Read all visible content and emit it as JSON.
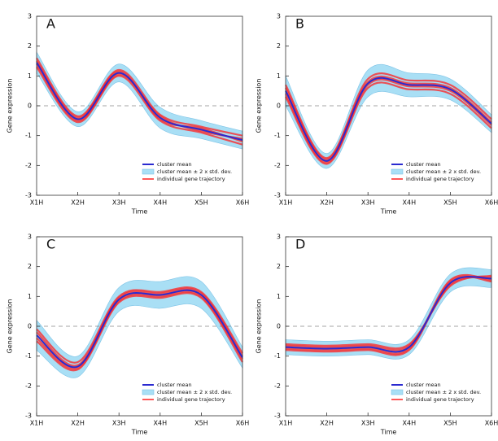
{
  "chart_data": [
    {
      "type": "band-line",
      "panel": "A",
      "ylabel": "Gene expression",
      "xlabel": "Time",
      "categories": [
        "X1H",
        "X2H",
        "X3H",
        "X4H",
        "X5H",
        "X6H"
      ],
      "ylim": [
        -3,
        3
      ],
      "yticks": [
        -3,
        -2,
        -1,
        0,
        1,
        2,
        3
      ],
      "hline": 0,
      "series": [
        {
          "name": "cluster mean",
          "color": "#2a2ad0",
          "values": [
            1.45,
            -0.45,
            1.1,
            -0.4,
            -0.8,
            -1.15
          ]
        },
        {
          "name": "cluster mean ± 2 x std. dev.",
          "color": "#a9dff5",
          "lower": [
            1.1,
            -0.7,
            0.8,
            -0.75,
            -1.1,
            -1.45
          ],
          "upper": [
            1.8,
            -0.2,
            1.4,
            -0.05,
            -0.5,
            -0.85
          ]
        },
        {
          "name": "individual gene trajectory",
          "color": "#ff2020",
          "trajectories": [
            [
              1.6,
              -0.35,
              1.2,
              -0.3,
              -0.7,
              -1.0
            ],
            [
              1.3,
              -0.55,
              1.0,
              -0.5,
              -0.9,
              -1.3
            ],
            [
              1.5,
              -0.4,
              1.15,
              -0.45,
              -0.75,
              -1.2
            ],
            [
              1.4,
              -0.5,
              1.05,
              -0.35,
              -0.85,
              -1.1
            ]
          ]
        }
      ]
    },
    {
      "type": "band-line",
      "panel": "B",
      "ylabel": "Gene expression",
      "xlabel": "Time",
      "categories": [
        "X1H",
        "X2H",
        "X3H",
        "X4H",
        "X5H",
        "X6H"
      ],
      "ylim": [
        -3,
        3
      ],
      "yticks": [
        -3,
        -2,
        -1,
        0,
        1,
        2,
        3
      ],
      "hline": 0,
      "series": [
        {
          "name": "cluster mean",
          "color": "#2a2ad0",
          "values": [
            0.5,
            -1.85,
            0.75,
            0.7,
            0.55,
            -0.6
          ]
        },
        {
          "name": "cluster mean ± 2 x std. dev.",
          "color": "#a9dff5",
          "lower": [
            0.0,
            -2.1,
            0.3,
            0.3,
            0.2,
            -0.9
          ],
          "upper": [
            1.0,
            -1.6,
            1.2,
            1.1,
            0.9,
            -0.3
          ]
        },
        {
          "name": "individual gene trajectory",
          "color": "#ff2020",
          "trajectories": [
            [
              0.7,
              -1.75,
              0.9,
              0.85,
              0.7,
              -0.45
            ],
            [
              0.3,
              -1.95,
              0.6,
              0.55,
              0.4,
              -0.75
            ],
            [
              0.6,
              -1.8,
              0.8,
              0.75,
              0.6,
              -0.55
            ],
            [
              0.4,
              -1.9,
              0.7,
              0.65,
              0.5,
              -0.65
            ]
          ]
        }
      ]
    },
    {
      "type": "band-line",
      "panel": "C",
      "ylabel": "Gene expression",
      "xlabel": "Time",
      "categories": [
        "X1H",
        "X2H",
        "X3H",
        "X4H",
        "X5H",
        "X6H"
      ],
      "ylim": [
        -3,
        3
      ],
      "yticks": [
        -3,
        -2,
        -1,
        0,
        1,
        2,
        3
      ],
      "hline": 0,
      "series": [
        {
          "name": "cluster mean",
          "color": "#2a2ad0",
          "values": [
            -0.3,
            -1.35,
            0.9,
            1.05,
            1.05,
            -1.05
          ]
        },
        {
          "name": "cluster mean ± 2 x std. dev.",
          "color": "#a9dff5",
          "lower": [
            -0.8,
            -1.7,
            0.5,
            0.6,
            0.6,
            -1.4
          ],
          "upper": [
            0.2,
            -1.0,
            1.3,
            1.5,
            1.5,
            -0.7
          ]
        },
        {
          "name": "individual gene trajectory",
          "color": "#ff2020",
          "trajectories": [
            [
              -0.1,
              -1.2,
              1.0,
              1.15,
              1.15,
              -0.9
            ],
            [
              -0.5,
              -1.45,
              0.8,
              0.95,
              0.95,
              -1.2
            ],
            [
              -0.2,
              -1.3,
              0.95,
              1.1,
              1.1,
              -1.0
            ],
            [
              -0.4,
              -1.4,
              0.85,
              1.0,
              1.0,
              -1.1
            ]
          ]
        }
      ]
    },
    {
      "type": "band-line",
      "panel": "D",
      "ylabel": "Gene expression",
      "xlabel": "Time",
      "categories": [
        "X1H",
        "X2H",
        "X3H",
        "X4H",
        "X5H",
        "X6H"
      ],
      "ylim": [
        -3,
        3
      ],
      "yticks": [
        -3,
        -2,
        -1,
        0,
        1,
        2,
        3
      ],
      "hline": 0,
      "series": [
        {
          "name": "cluster mean",
          "color": "#2a2ad0",
          "values": [
            -0.7,
            -0.75,
            -0.7,
            -0.7,
            1.45,
            1.6
          ]
        },
        {
          "name": "cluster mean ± 2 x std. dev.",
          "color": "#a9dff5",
          "lower": [
            -0.95,
            -1.0,
            -0.95,
            -0.95,
            1.15,
            1.3
          ],
          "upper": [
            -0.45,
            -0.5,
            -0.45,
            -0.45,
            1.75,
            1.9
          ]
        },
        {
          "name": "individual gene trajectory",
          "color": "#ff2020",
          "trajectories": [
            [
              -0.6,
              -0.65,
              -0.6,
              -0.6,
              1.35,
              1.7
            ],
            [
              -0.8,
              -0.85,
              -0.8,
              -0.8,
              1.5,
              1.5
            ],
            [
              -0.65,
              -0.7,
              -0.65,
              -0.65,
              1.4,
              1.65
            ],
            [
              -0.75,
              -0.8,
              -0.75,
              -0.75,
              1.55,
              1.55
            ]
          ]
        }
      ]
    }
  ]
}
